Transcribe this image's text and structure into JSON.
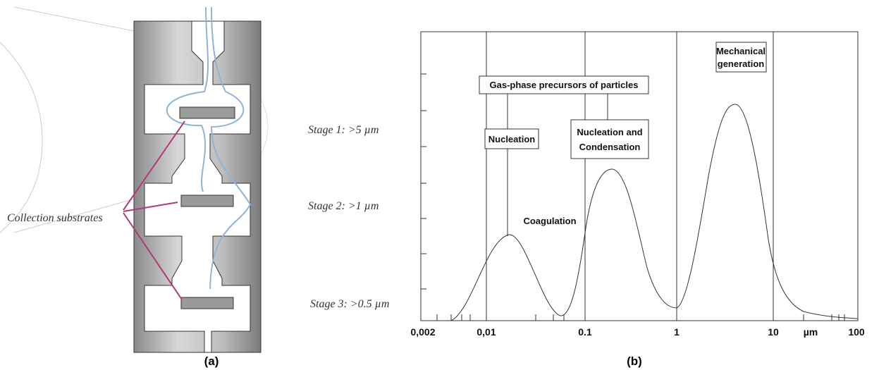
{
  "panel_a": {
    "stage_labels": [
      "Stage 1: >5 µm",
      "Stage 2: >1 µm",
      "Stage 3: >0.5 µm"
    ],
    "collection_label": "Collection substrates",
    "caption": "(a)"
  },
  "panel_b": {
    "gas_phase_box": "Gas-phase precursors of particles",
    "nucleation_box": "Nucleation",
    "nucleation_condensation_box": [
      "Nucleation and",
      "Condensation"
    ],
    "mechanical_box": [
      "Mechanical",
      "generation"
    ],
    "coagulation": "Coagulation",
    "x_axis_labels": [
      "0,002",
      "0,01",
      "0.1",
      "1",
      "10",
      "µm",
      "100"
    ],
    "caption": "(b)"
  }
}
